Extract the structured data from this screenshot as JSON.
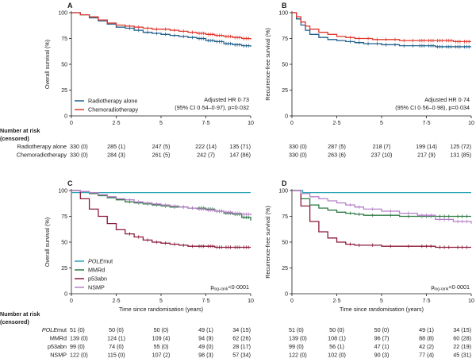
{
  "chart_data": [
    {
      "panel": "A",
      "type": "line",
      "ylabel": "Overall survival (%)",
      "xlabel": "",
      "xlim": [
        0,
        10
      ],
      "ylim": [
        0,
        100
      ],
      "xticks": [
        "0",
        "2·5",
        "5",
        "7·5",
        "10"
      ],
      "yticks": [
        "0",
        "25",
        "50",
        "75",
        "100"
      ],
      "legend": "bottom-left",
      "annotation": [
        "Adjusted HR 0·73",
        "(95% CI 0·54–0·97), p=0·032"
      ],
      "series": [
        {
          "name": "Radiotherapy alone",
          "color": "#1f5f8b",
          "x": [
            0,
            0.5,
            1,
            1.5,
            2,
            2.5,
            3,
            3.5,
            4,
            4.5,
            5,
            5.5,
            6,
            6.5,
            7,
            7.5,
            8,
            8.5,
            9,
            9.5,
            10
          ],
          "y": [
            100,
            98,
            95,
            92,
            89,
            86,
            85,
            83,
            81,
            80,
            79,
            78,
            77,
            76,
            75,
            73,
            72,
            70,
            69,
            68,
            67
          ]
        },
        {
          "name": "Chemoradiotherapy",
          "color": "#e0382c",
          "x": [
            0,
            0.5,
            1,
            1.5,
            2,
            2.5,
            3,
            3.5,
            4,
            4.5,
            5,
            5.5,
            6,
            6.5,
            7,
            7.5,
            8,
            8.5,
            9,
            9.5,
            10
          ],
          "y": [
            100,
            98,
            96,
            93,
            90,
            88,
            87,
            86,
            85,
            84,
            84,
            83,
            82,
            81,
            80,
            79,
            78,
            77,
            76,
            75,
            74
          ]
        }
      ]
    },
    {
      "panel": "B",
      "type": "line",
      "ylabel": "Recurrence-free survival (%)",
      "xlabel": "",
      "xlim": [
        0,
        10
      ],
      "ylim": [
        0,
        100
      ],
      "xticks": [
        "0",
        "2·5",
        "5",
        "7·5",
        "10"
      ],
      "yticks": [
        "0",
        "25",
        "50",
        "75",
        "100"
      ],
      "annotation": [
        "Adjusted HR 0·74",
        "(95% CI 0·56–0·98), p=0·034"
      ],
      "series": [
        {
          "name": "Radiotherapy alone",
          "color": "#1f5f8b",
          "x": [
            0,
            0.25,
            0.5,
            0.75,
            1,
            1.5,
            2,
            2.5,
            3,
            3.5,
            4,
            4.5,
            5,
            5.5,
            6,
            6.5,
            7,
            7.5,
            8,
            8.5,
            9,
            9.5,
            10
          ],
          "y": [
            100,
            94,
            88,
            83,
            79,
            76,
            74,
            73,
            72,
            71,
            70,
            70,
            69,
            69,
            68,
            68,
            68,
            68,
            67,
            67,
            67,
            67,
            67
          ]
        },
        {
          "name": "Chemoradiotherapy",
          "color": "#e0382c",
          "x": [
            0,
            0.25,
            0.5,
            0.75,
            1,
            1.5,
            2,
            2.5,
            3,
            3.5,
            4,
            4.5,
            5,
            5.5,
            6,
            6.5,
            7,
            7.5,
            8,
            8.5,
            9,
            9.5,
            10
          ],
          "y": [
            100,
            96,
            91,
            87,
            84,
            81,
            79,
            77,
            76,
            75,
            75,
            74,
            74,
            74,
            73,
            73,
            73,
            73,
            73,
            73,
            72,
            72,
            72
          ]
        }
      ]
    },
    {
      "panel": "C",
      "type": "line",
      "ylabel": "Overall survival (%)",
      "xlabel": "Time since randomisation (years)",
      "xlim": [
        0,
        10
      ],
      "ylim": [
        0,
        100
      ],
      "xticks": [
        "0",
        "2·5",
        "5",
        "7·5",
        "10"
      ],
      "yticks": [
        "0",
        "25",
        "50",
        "75",
        "100"
      ],
      "legend": "bottom-left",
      "pvalue": {
        "prefix": "p",
        "sub": "log-rank",
        "suffix": "<0·0001"
      },
      "series": [
        {
          "name": "POLEmut",
          "name_italic": "POLE",
          "name_rest": "mut",
          "color": "#2aa6b4",
          "x": [
            0,
            10
          ],
          "y": [
            98,
            98
          ]
        },
        {
          "name": "MMRd",
          "color": "#2d7a43",
          "x": [
            0,
            0.5,
            1,
            1.5,
            2,
            2.5,
            3,
            3.5,
            4,
            4.5,
            5,
            5.5,
            6,
            6.5,
            7,
            7.5,
            8,
            8.5,
            9,
            9.5,
            10
          ],
          "y": [
            100,
            99,
            97,
            95,
            93,
            91,
            89,
            88,
            87,
            86,
            85,
            84,
            84,
            83,
            83,
            82,
            80,
            78,
            77,
            74,
            71
          ]
        },
        {
          "name": "p53abn",
          "color": "#8b1a3a",
          "x": [
            0,
            0.5,
            1,
            1.5,
            2,
            2.5,
            3,
            3.5,
            4,
            4.5,
            5,
            5.5,
            6,
            6.5,
            7,
            7.5,
            8,
            8.5,
            9,
            9.5,
            10
          ],
          "y": [
            100,
            92,
            82,
            75,
            68,
            62,
            58,
            55,
            52,
            50,
            49,
            48,
            47,
            46,
            46,
            46,
            45,
            45,
            45,
            45,
            45
          ]
        },
        {
          "name": "NSMP",
          "color": "#b580c8",
          "x": [
            0,
            0.5,
            1,
            1.5,
            2,
            2.5,
            3,
            3.5,
            4,
            4.5,
            5,
            5.5,
            6,
            6.5,
            7,
            7.5,
            8,
            8.5,
            9,
            9.5,
            10
          ],
          "y": [
            100,
            99,
            98,
            96,
            94,
            92,
            91,
            89,
            88,
            87,
            86,
            85,
            84,
            83,
            82,
            81,
            80,
            79,
            78,
            77,
            76
          ]
        }
      ]
    },
    {
      "panel": "D",
      "type": "line",
      "ylabel": "Recurrence-free survival (%)",
      "xlabel": "Time since randomisation (years)",
      "xlim": [
        0,
        10
      ],
      "ylim": [
        0,
        100
      ],
      "xticks": [
        "0",
        "2·5",
        "5",
        "7·5",
        "10"
      ],
      "yticks": [
        "0",
        "25",
        "50",
        "75",
        "100"
      ],
      "pvalue": {
        "prefix": "p",
        "sub": "log-rank",
        "suffix": "<0·0001"
      },
      "series": [
        {
          "name": "POLEmut",
          "color": "#2aa6b4",
          "x": [
            0,
            0.6,
            0.6,
            10
          ],
          "y": [
            100,
            100,
            98,
            98
          ]
        },
        {
          "name": "MMRd",
          "color": "#2d7a43",
          "x": [
            0,
            0.5,
            1,
            1.5,
            2,
            2.5,
            3,
            3.5,
            4,
            5,
            6,
            7,
            8,
            9,
            10
          ],
          "y": [
            100,
            92,
            86,
            83,
            81,
            79,
            78,
            77,
            76,
            76,
            75,
            75,
            75,
            75,
            75
          ]
        },
        {
          "name": "p53abn",
          "color": "#8b1a3a",
          "x": [
            0,
            0.5,
            1,
            1.5,
            2,
            2.5,
            3,
            3.5,
            4,
            5,
            6,
            7,
            8,
            9,
            10
          ],
          "y": [
            100,
            85,
            70,
            60,
            54,
            50,
            48,
            47,
            47,
            46,
            46,
            46,
            45,
            45,
            45
          ]
        },
        {
          "name": "NSMP",
          "color": "#b580c8",
          "x": [
            0,
            0.5,
            1,
            1.5,
            2,
            2.5,
            3,
            3.5,
            4,
            5,
            6,
            7,
            8,
            9,
            10
          ],
          "y": [
            100,
            97,
            94,
            92,
            90,
            88,
            86,
            84,
            82,
            80,
            78,
            76,
            72,
            70,
            68
          ]
        }
      ]
    }
  ],
  "risk_tables": {
    "top": {
      "header": [
        "Number at risk",
        "(censored)"
      ],
      "rows": [
        {
          "label": "Radiotherapy alone",
          "left": [
            "330 (0)",
            "285 (1)",
            "247 (5)",
            "222 (14)",
            "135 (71)"
          ],
          "right": [
            "330 (0)",
            "287 (5)",
            "218 (7)",
            "199 (14)",
            "125 (72)"
          ]
        },
        {
          "label": "Chemoradiotherapy",
          "left": [
            "330 (0)",
            "284 (3)",
            "261 (5)",
            "242 (7)",
            "147 (86)"
          ],
          "right": [
            "330 (0)",
            "263 (6)",
            "237 (10)",
            "217 (9)",
            "131 (85)"
          ]
        }
      ]
    },
    "bottom": {
      "header": [
        "Number at risk",
        "(censored)"
      ],
      "rows": [
        {
          "label": "POLEmut",
          "left": [
            "51 (0)",
            "50 (0)",
            "50 (0)",
            "49 (1)",
            "34 (15)"
          ],
          "right": [
            "51 (0)",
            "50 (0)",
            "50 (0)",
            "49 (1)",
            "34 (15)"
          ]
        },
        {
          "label": "MMRd",
          "left": [
            "139 (0)",
            "124 (1)",
            "109 (4)",
            "94 (9)",
            "62 (26)"
          ],
          "right": [
            "139 (0)",
            "108 (1)",
            "96 (7)",
            "88 (8)",
            "60 (28)"
          ]
        },
        {
          "label": "p53abn",
          "left": [
            "99 (0)",
            "74 (0)",
            "55 (0)",
            "49 (0)",
            "28 (17)"
          ],
          "right": [
            "99 (0)",
            "56 (1)",
            "47 (1)",
            "42 (2)",
            "22 (19)"
          ]
        },
        {
          "label": "NSMP",
          "left": [
            "122 (0)",
            "115 (0)",
            "107 (2)",
            "98 (3)",
            "57 (34)"
          ],
          "right": [
            "122 (0)",
            "102 (0)",
            "90 (3)",
            "77 (4)",
            "45 (31)"
          ]
        }
      ]
    }
  }
}
